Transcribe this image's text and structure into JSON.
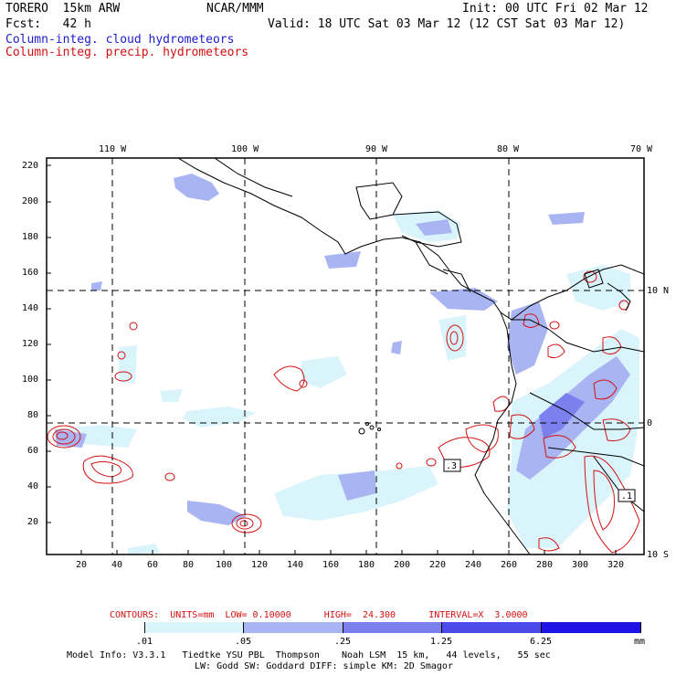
{
  "header": {
    "model": "TORERO  15km ARW",
    "org": "NCAR/MMM",
    "init": "Init: 00 UTC Fri 02 Mar 12",
    "forecast": "Fcst:   42 h",
    "valid": "Valid: 18 UTC Sat 03 Mar 12 (12 CST Sat 03 Mar 12)",
    "field_cloud": "Column-integ. cloud hydrometeors",
    "field_precip": "Column-integ. precip. hydrometeors"
  },
  "colors": {
    "cloud_label": "#1c1ccf",
    "precip_label": "#d41010",
    "contour": "#d41010",
    "shade_levels": [
      "#ffffff",
      "#d9f4fb",
      "#a9b4f2",
      "#7c80ee",
      "#4a4ae8",
      "#1f14e6"
    ]
  },
  "axes": {
    "top_lon_labels": [
      "110 W",
      "100 W",
      "90 W",
      "80 W",
      "70 W"
    ],
    "left_labels": [
      "220",
      "200",
      "180",
      "160",
      "140",
      "120",
      "100",
      "80",
      "60",
      "40",
      "20"
    ],
    "bottom_labels": [
      "20",
      "40",
      "60",
      "80",
      "100",
      "120",
      "140",
      "160",
      "180",
      "200",
      "220",
      "240",
      "260",
      "280",
      "300",
      "320"
    ],
    "right_lat_labels": [
      "10 N",
      "0",
      "10 S"
    ]
  },
  "contour_info": {
    "label": "CONTOURS:  UNITS=mm  LOW= 0.10000      HIGH=  24.300      INTERVAL=X  3.0000"
  },
  "labels_on_map": {
    "box_a": ".3",
    "box_b": ".1"
  },
  "colorbar": {
    "tick_labels": [
      ".01",
      ".05",
      ".25",
      "1.25",
      "6.25"
    ],
    "units": "mm"
  },
  "footer": {
    "line1": "Model Info: V3.3.1   Tiedtke YSU PBL  Thompson    Noah LSM  15 km,   44 levels,   55 sec",
    "line2": "LW: Godd SW: Goddard DIFF: simple KM: 2D Smagor"
  }
}
